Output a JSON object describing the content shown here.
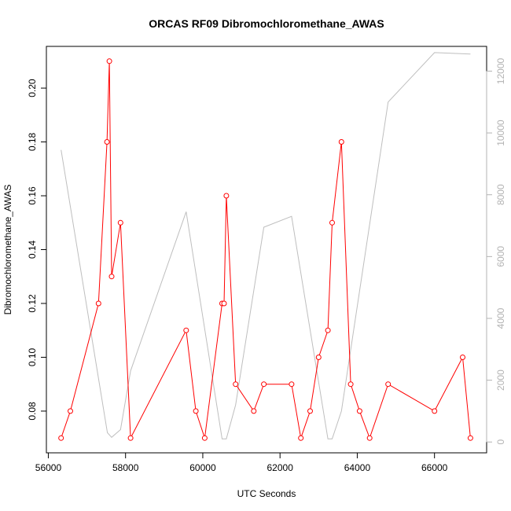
{
  "chart_data": {
    "type": "line",
    "title": "ORCAS RF09 Dibromochloromethane_AWAS",
    "xlabel": "UTC Seconds",
    "ylabel": "Dibromochloromethane_AWAS",
    "xlim": [
      55950,
      67350
    ],
    "ylim": [
      0.0645,
      0.2155
    ],
    "y2lim": [
      -350,
      12800
    ],
    "x_ticks": [
      56000,
      58000,
      60000,
      62000,
      64000,
      66000
    ],
    "y_ticks": [
      0.08,
      0.1,
      0.12,
      0.14,
      0.16,
      0.18,
      0.2
    ],
    "y2_ticks": [
      0,
      2000,
      4000,
      6000,
      8000,
      10000,
      12000
    ],
    "grid": false,
    "series": [
      {
        "color": "#ff0000",
        "marker": "open-circle",
        "axis": "left",
        "points": [
          [
            56330,
            0.07
          ],
          [
            56570,
            0.08
          ],
          [
            57300,
            0.12
          ],
          [
            57520,
            0.18
          ],
          [
            57580,
            0.21
          ],
          [
            57640,
            0.13
          ],
          [
            57870,
            0.15
          ],
          [
            58130,
            0.07
          ],
          [
            59570,
            0.11
          ],
          [
            59820,
            0.08
          ],
          [
            60050,
            0.07
          ],
          [
            60500,
            0.12
          ],
          [
            60550,
            0.12
          ],
          [
            60610,
            0.16
          ],
          [
            60850,
            0.09
          ],
          [
            61320,
            0.08
          ],
          [
            61580,
            0.09
          ],
          [
            62300,
            0.09
          ],
          [
            62540,
            0.07
          ],
          [
            62780,
            0.08
          ],
          [
            63000,
            0.1
          ],
          [
            63240,
            0.11
          ],
          [
            63350,
            0.15
          ],
          [
            63590,
            0.18
          ],
          [
            63830,
            0.09
          ],
          [
            64060,
            0.08
          ],
          [
            64320,
            0.07
          ],
          [
            64800,
            0.09
          ],
          [
            66000,
            0.08
          ],
          [
            66730,
            0.1
          ],
          [
            66930,
            0.07
          ]
        ]
      },
      {
        "color": "#bebebe",
        "marker": "none",
        "axis": "right",
        "points": [
          [
            56330,
            9450
          ],
          [
            57530,
            300
          ],
          [
            57640,
            150
          ],
          [
            57870,
            400
          ],
          [
            58130,
            2300
          ],
          [
            59570,
            7450
          ],
          [
            60500,
            100
          ],
          [
            60610,
            100
          ],
          [
            60850,
            1200
          ],
          [
            61580,
            6950
          ],
          [
            62300,
            7300
          ],
          [
            63240,
            100
          ],
          [
            63350,
            100
          ],
          [
            63590,
            1000
          ],
          [
            64800,
            11000
          ],
          [
            66000,
            12600
          ],
          [
            66930,
            12550
          ]
        ]
      }
    ]
  }
}
